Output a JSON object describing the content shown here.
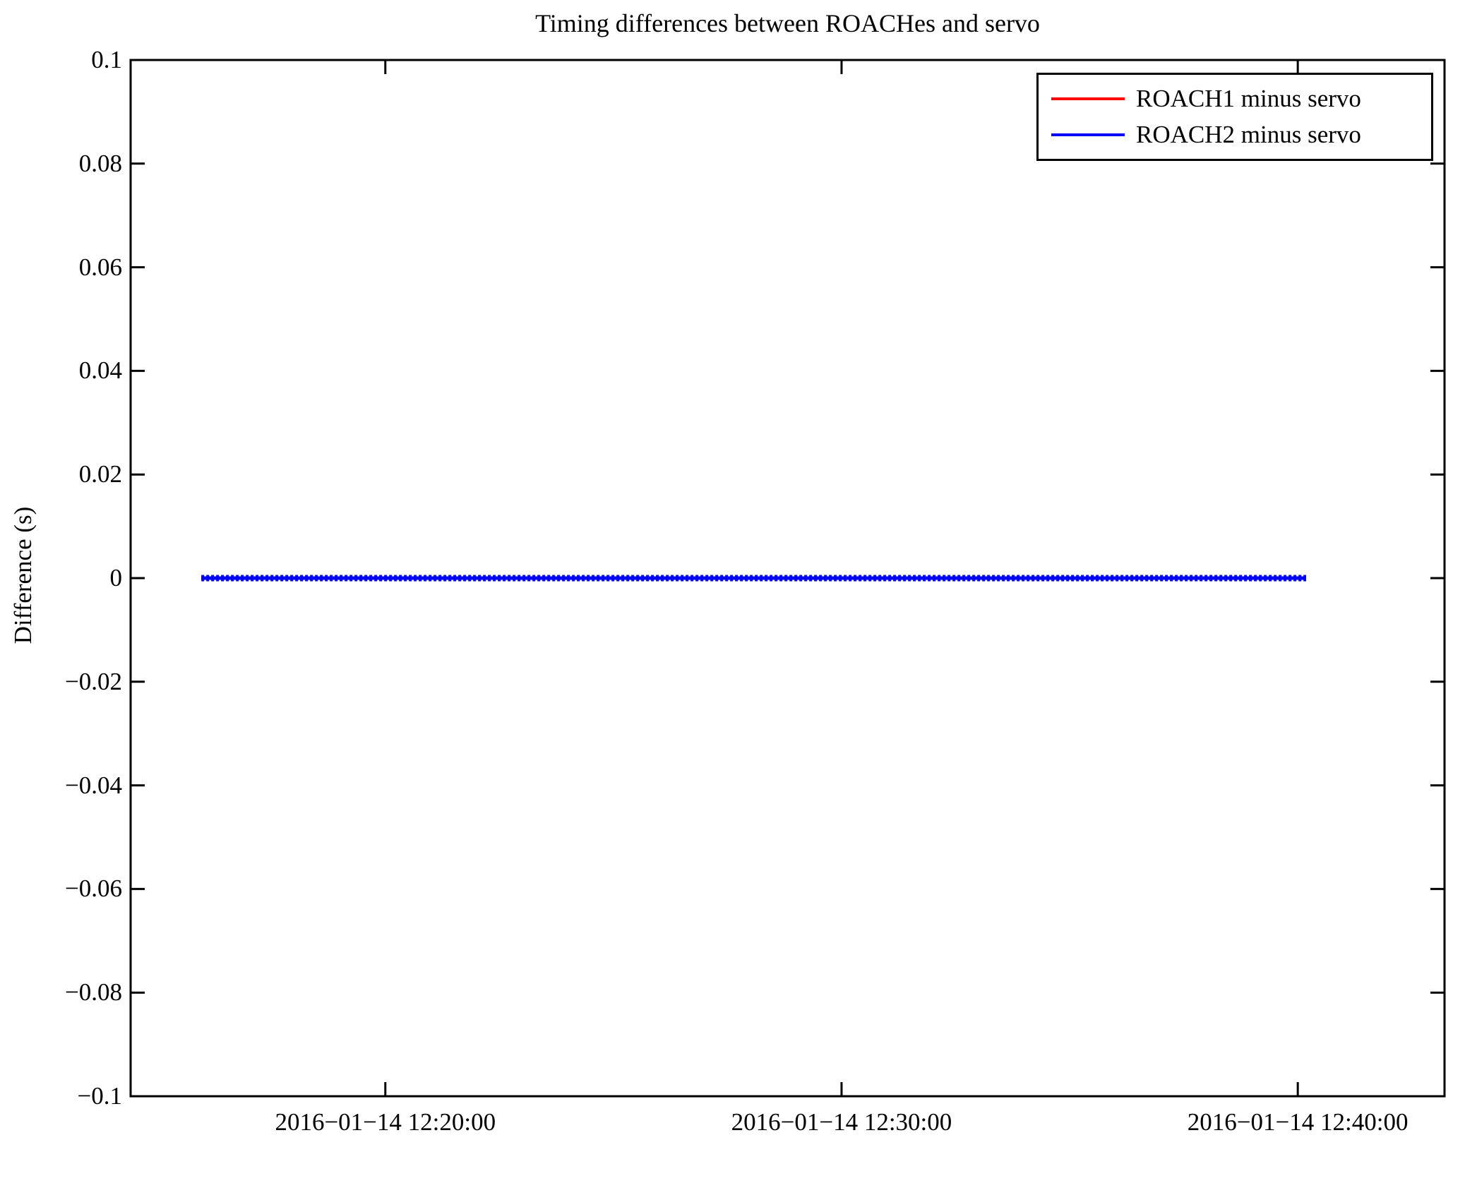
{
  "figure": {
    "title": "Timing differences between ROACHes and servo",
    "ylabel": "Difference (s)"
  },
  "legend": {
    "position": "upper right",
    "entries": [
      {
        "label": "ROACH1 minus servo",
        "color": "#ff0000"
      },
      {
        "label": "ROACH2 minus servo",
        "color": "#0000ff"
      }
    ]
  },
  "chart_data": {
    "type": "line",
    "title": "Timing differences between ROACHes and servo",
    "xlabel": "",
    "ylabel": "Difference (s)",
    "ylim": [
      -0.1,
      0.1
    ],
    "y_tick_values": [
      0.1,
      0.08,
      0.06,
      0.04,
      0.02,
      0,
      -0.02,
      -0.04,
      -0.06,
      -0.08,
      -0.1
    ],
    "y_tick_labels": [
      "0.1",
      "0.08",
      "0.06",
      "0.04",
      "0.02",
      "0",
      "−0.02",
      "−0.04",
      "−0.06",
      "−0.08",
      "−0.1"
    ],
    "x_axis": {
      "lim_seconds_of_day": [
        44065,
        45793
      ],
      "tick_seconds_of_day": [
        44400,
        45000,
        45600
      ],
      "tick_labels": [
        "2016−01−14 12:20:00",
        "2016−01−14 12:30:00",
        "2016−01−14 12:40:00"
      ]
    },
    "grid": false,
    "legend_position": "upper right",
    "series": [
      {
        "name": "ROACH1 minus servo",
        "color": "#ff0000",
        "start_seconds_of_day": 44158,
        "end_seconds_of_day": 45611,
        "value": 0.0
      },
      {
        "name": "ROACH2 minus servo",
        "color": "#0000ff",
        "start_seconds_of_day": 44158,
        "end_seconds_of_day": 45611,
        "value": 0.0
      }
    ]
  }
}
